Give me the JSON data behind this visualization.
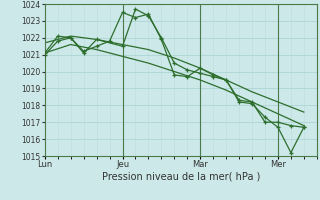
{
  "xlabel": "Pression niveau de la mer( hPa )",
  "bg_color": "#cce8e8",
  "grid_color_major": "#a8d0d0",
  "grid_color_minor": "#bcdcdc",
  "line_color": "#2d6e2d",
  "ylim": [
    1015,
    1024
  ],
  "yticks": [
    1015,
    1016,
    1017,
    1018,
    1019,
    1020,
    1021,
    1022,
    1023,
    1024
  ],
  "day_labels": [
    "Lun",
    "Jeu",
    "Mar",
    "Mer"
  ],
  "day_positions": [
    0,
    3,
    6,
    9
  ],
  "vline_positions": [
    3,
    6,
    9
  ],
  "xlim": [
    0,
    10.5
  ],
  "line1_x": [
    0,
    0.5,
    1.0,
    1.5,
    2.0,
    2.5,
    3.0,
    3.5,
    4.0,
    4.5,
    5.0,
    5.5,
    6.0,
    6.5,
    7.0,
    7.5,
    8.0,
    8.5,
    9.0,
    9.5,
    10.0
  ],
  "line1_y": [
    1021.0,
    1021.8,
    1022.0,
    1021.2,
    1021.5,
    1021.8,
    1023.5,
    1023.2,
    1023.4,
    1021.9,
    1019.8,
    1019.7,
    1020.2,
    1019.8,
    1019.5,
    1018.3,
    1018.2,
    1017.0,
    1017.0,
    1016.8,
    1016.7
  ],
  "line2_x": [
    0,
    0.5,
    1.0,
    1.5,
    2.0,
    3.0,
    3.5,
    4.0,
    4.5,
    5.0,
    5.5,
    6.0,
    6.5,
    7.0,
    7.5,
    8.0,
    8.5,
    9.0,
    9.5,
    10.0
  ],
  "line2_y": [
    1021.1,
    1022.1,
    1022.0,
    1021.1,
    1021.9,
    1021.5,
    1023.7,
    1023.3,
    1022.0,
    1020.5,
    1020.1,
    1019.9,
    1019.7,
    1019.5,
    1018.2,
    1018.1,
    1017.3,
    1016.7,
    1015.2,
    1016.7
  ],
  "line3_x": [
    0,
    1,
    2,
    3,
    4,
    5,
    6,
    7,
    8,
    9,
    10
  ],
  "line3_y": [
    1021.7,
    1022.1,
    1021.9,
    1021.6,
    1021.3,
    1020.8,
    1020.2,
    1019.5,
    1018.8,
    1018.2,
    1017.6
  ],
  "line4_x": [
    0,
    1,
    2,
    3,
    4,
    5,
    6,
    7,
    8,
    9,
    10
  ],
  "line4_y": [
    1021.1,
    1021.6,
    1021.3,
    1020.9,
    1020.5,
    1020.0,
    1019.5,
    1018.9,
    1018.2,
    1017.5,
    1016.8
  ]
}
